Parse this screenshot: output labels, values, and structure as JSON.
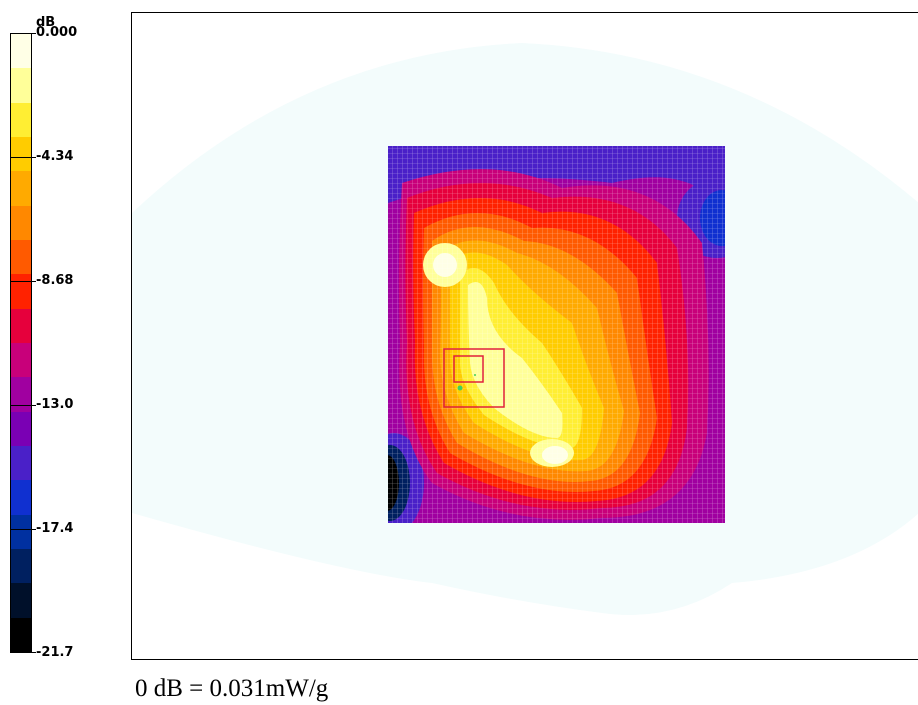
{
  "legend": {
    "unit": "dB",
    "ticks": [
      "0.000",
      "-4.34",
      "-8.68",
      "-13.0",
      "-17.4",
      "-21.7"
    ]
  },
  "footer": {
    "caption": "0 dB = 0.031mW/g"
  },
  "chart_data": {
    "type": "heatmap",
    "title": "",
    "colorbar": {
      "unit": "dB",
      "range": [
        -21.7,
        0.0
      ],
      "tick_values": [
        0.0,
        -4.34,
        -8.68,
        -13.0,
        -17.4,
        -21.7
      ],
      "levels": [
        "#ffffe6",
        "#ffff99",
        "#ffee33",
        "#ffcc00",
        "#ffaa00",
        "#ff8800",
        "#ff5a00",
        "#ff2200",
        "#e6003c",
        "#c8007a",
        "#a000a0",
        "#7a00b4",
        "#4a20c8",
        "#1030d0",
        "#0030a0",
        "#002060",
        "#00102a",
        "#000000"
      ]
    },
    "peaks_db": [
      0.0,
      -0.5
    ],
    "note": "Contour map of relative SAR in dB over a rectangular scan area inside a phantom outline"
  }
}
